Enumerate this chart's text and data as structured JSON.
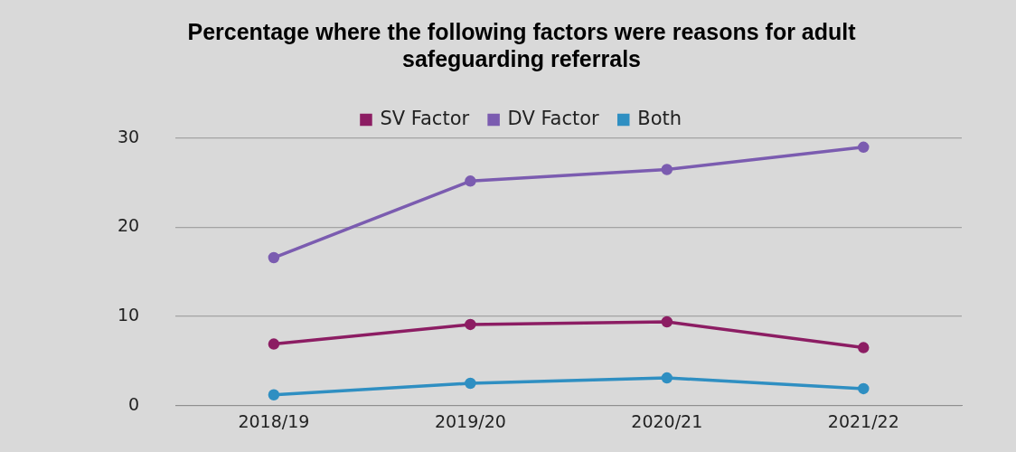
{
  "chart_data": {
    "type": "line",
    "title": "Percentage where the following factors were reasons for adult safeguarding referrals",
    "categories": [
      "2018/19",
      "2019/20",
      "2020/21",
      "2021/22"
    ],
    "series": [
      {
        "name": "SV Factor",
        "color": "#8c1d63",
        "values": [
          6.9,
          9.1,
          9.4,
          6.5
        ]
      },
      {
        "name": "DV Factor",
        "color": "#7b5cb0",
        "values": [
          16.6,
          25.2,
          26.5,
          29.0
        ]
      },
      {
        "name": "Both",
        "color": "#2f8fc2",
        "values": [
          1.2,
          2.5,
          3.1,
          1.9
        ]
      }
    ],
    "ylim": [
      0,
      30
    ],
    "yticks": [
      0,
      10,
      20,
      30
    ],
    "grid": "y",
    "legend": "top",
    "marker": "circle",
    "line_style": "solid"
  }
}
